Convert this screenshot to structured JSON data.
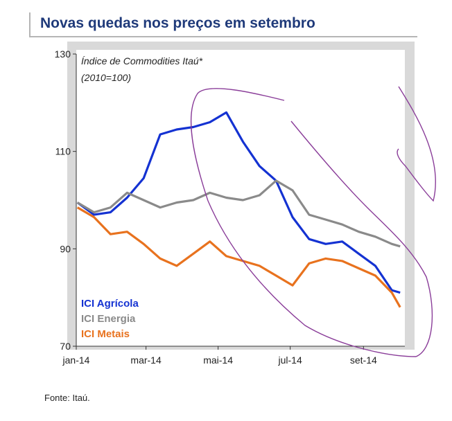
{
  "title": "Novas quedas nos preços em setembro",
  "source": "Fonte: Itaú.",
  "colors": {
    "title": "#1f3a7a",
    "frame": "#d9d9d9",
    "annotation": "#8a3d99"
  },
  "chart_data": {
    "type": "line",
    "subtitle_line1": "Índice de Commodities Itaú*",
    "subtitle_line2": "(2010=100)",
    "x": [
      "2014-01-02",
      "2014-01-16",
      "2014-01-30",
      "2014-02-13",
      "2014-02-27",
      "2014-03-13",
      "2014-03-27",
      "2014-04-10",
      "2014-04-24",
      "2014-05-08",
      "2014-05-22",
      "2014-06-05",
      "2014-06-19",
      "2014-07-03",
      "2014-07-17",
      "2014-07-31",
      "2014-08-14",
      "2014-08-28",
      "2014-09-11",
      "2014-09-25",
      "2014-10-02"
    ],
    "xticks": [
      "jan-14",
      "mar-14",
      "mai-14",
      "jul-14",
      "set-14"
    ],
    "xtick_dates": [
      "2014-01-01",
      "2014-03-01",
      "2014-05-01",
      "2014-07-01",
      "2014-09-01"
    ],
    "ylim": [
      70,
      130
    ],
    "yticks": [
      70,
      90,
      110,
      130
    ],
    "grid": false,
    "legend_placement": "bottom-left",
    "series": [
      {
        "name": "ICI Agrícola",
        "color": "#1432d2",
        "values": [
          99.5,
          97,
          97.5,
          100.5,
          104.5,
          113.5,
          114.5,
          115,
          116,
          118,
          112,
          107,
          104,
          96.5,
          92,
          91,
          91.5,
          89,
          86.5,
          81.5,
          81
        ]
      },
      {
        "name": "ICI Energia",
        "color": "#8a8a8a",
        "values": [
          99.5,
          97.5,
          98.5,
          101.5,
          100,
          98.5,
          99.5,
          100,
          101.5,
          100.5,
          100,
          101,
          104,
          102,
          97,
          96,
          95,
          93.5,
          92.5,
          91,
          90.5
        ]
      },
      {
        "name": "ICI Metais",
        "color": "#e8721e",
        "values": [
          98.5,
          96.5,
          93,
          93.5,
          91,
          88,
          86.5,
          89,
          91.5,
          88.5,
          87.5,
          86.5,
          84.5,
          82.5,
          87,
          88,
          87.5,
          86,
          84.5,
          81,
          78
        ]
      }
    ]
  }
}
